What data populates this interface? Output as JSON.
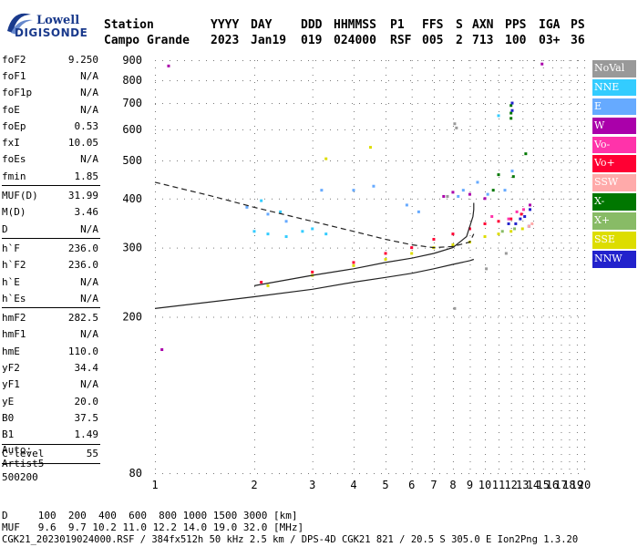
{
  "logo": {
    "line1": "Lowell",
    "line2": "DIGISONDE"
  },
  "header": {
    "row1": [
      "Station",
      "YYYY",
      "DAY",
      "DDD",
      "HHMMSS",
      "P1",
      "FFS",
      "S",
      "AXN",
      "PPS",
      "IGA",
      "PS"
    ],
    "row2": [
      "Campo Grande",
      "2023",
      "Jan19",
      "019",
      "024000",
      "RSF",
      "005",
      "2",
      "713",
      "100",
      "03+",
      "36"
    ]
  },
  "params": {
    "group1": [
      {
        "label": "foF2",
        "value": "9.250"
      },
      {
        "label": "foF1",
        "value": "N/A"
      },
      {
        "label": "foF1p",
        "value": "N/A"
      },
      {
        "label": "foE",
        "value": "N/A"
      },
      {
        "label": "foEp",
        "value": "0.53"
      },
      {
        "label": "fxI",
        "value": "10.05"
      },
      {
        "label": "foEs",
        "value": "N/A"
      },
      {
        "label": "fmin",
        "value": "1.85"
      }
    ],
    "group2": [
      {
        "label": "MUF(D)",
        "value": "31.99"
      },
      {
        "label": "M(D)",
        "value": "3.46"
      },
      {
        "label": "D",
        "value": "N/A"
      }
    ],
    "group3": [
      {
        "label": "h`F",
        "value": "236.0"
      },
      {
        "label": "h`F2",
        "value": "236.0"
      },
      {
        "label": "h`E",
        "value": "N/A"
      },
      {
        "label": "h`Es",
        "value": "N/A"
      }
    ],
    "group4": [
      {
        "label": "hmF2",
        "value": "282.5"
      },
      {
        "label": "hmF1",
        "value": "N/A"
      },
      {
        "label": "hmE",
        "value": "110.0"
      },
      {
        "label": "yF2",
        "value": "34.4"
      },
      {
        "label": "yF1",
        "value": "N/A"
      },
      {
        "label": "yE",
        "value": "20.0"
      },
      {
        "label": "B0",
        "value": "37.5"
      },
      {
        "label": "B1",
        "value": "1.49"
      }
    ],
    "group5": [
      {
        "label": "C-level",
        "value": "55"
      }
    ]
  },
  "auto": {
    "line1": "Auto:",
    "line2": "Artist5",
    "line3": "500200"
  },
  "legend": [
    {
      "label": "NoVal",
      "color": "#999999"
    },
    {
      "label": "NNE",
      "color": "#33ccff"
    },
    {
      "label": "E",
      "color": "#66aaff"
    },
    {
      "label": "W",
      "color": "#aa00aa"
    },
    {
      "label": "Vo-",
      "color": "#ff33aa"
    },
    {
      "label": "Vo+",
      "color": "#ff0033"
    },
    {
      "label": "SSW",
      "color": "#ffaaaa"
    },
    {
      "label": "X-",
      "color": "#007700"
    },
    {
      "label": "X+",
      "color": "#88bb66"
    },
    {
      "label": "SSE",
      "color": "#dddd00"
    },
    {
      "label": "NNW",
      "color": "#2222cc"
    }
  ],
  "footer": {
    "d_row": "D     100  200  400  600  800 1000 1500 3000 [km]",
    "muf_row": "MUF   9.6  9.7 10.2 11.0 12.2 14.0 19.0 32.0 [MHz]",
    "file_row": "CGK21_2023019024000.RSF / 384fx512h 50 kHz 2.5 km / DPS-4D CGK21 821 / 20.5 S 305.0 E Ion2Png 1.3.20"
  },
  "chart_data": {
    "type": "scatter",
    "x_ticks": [
      1,
      2,
      3,
      4,
      5,
      6,
      7,
      8,
      9,
      10,
      11,
      12,
      13,
      14,
      15,
      16,
      17,
      18,
      19,
      20
    ],
    "y_ticks": [
      80,
      200,
      300,
      400,
      500,
      600,
      700,
      800,
      900
    ],
    "xlim": [
      1,
      20
    ],
    "ylim": [
      80,
      900
    ],
    "x_scale": "log",
    "y_scale": "log",
    "grid": true,
    "series": [
      {
        "name": "X-",
        "color": "#007700",
        "points": [
          [
            12.0,
            690
          ],
          [
            12.0,
            660
          ],
          [
            12.0,
            640
          ],
          [
            12.2,
            455
          ],
          [
            13.3,
            520
          ],
          [
            11.0,
            460
          ],
          [
            10.6,
            420
          ]
        ]
      },
      {
        "name": "NNW",
        "color": "#2222cc",
        "points": [
          [
            12.1,
            700
          ],
          [
            12.1,
            670
          ],
          [
            13.7,
            375
          ],
          [
            12.4,
            345
          ],
          [
            12.8,
            355
          ],
          [
            13.2,
            360
          ],
          [
            11.8,
            345
          ],
          [
            13.6,
            340
          ]
        ]
      },
      {
        "name": "W",
        "color": "#aa00aa",
        "points": [
          [
            1.1,
            870
          ],
          [
            14.9,
            880
          ],
          [
            1.05,
            165
          ],
          [
            8.0,
            415
          ],
          [
            9.0,
            410
          ],
          [
            10.0,
            400
          ],
          [
            7.5,
            405
          ],
          [
            13.7,
            385
          ]
        ]
      },
      {
        "name": "E",
        "color": "#66aaff",
        "points": [
          [
            1.9,
            380
          ],
          [
            2.2,
            365
          ],
          [
            2.5,
            350
          ],
          [
            3.2,
            420
          ],
          [
            4.0,
            420
          ],
          [
            4.6,
            430
          ],
          [
            5.8,
            385
          ],
          [
            6.3,
            370
          ],
          [
            8.3,
            405
          ],
          [
            8.6,
            420
          ],
          [
            9.5,
            440
          ],
          [
            10.2,
            410
          ],
          [
            11.5,
            420
          ],
          [
            12.1,
            470
          ]
        ]
      },
      {
        "name": "NNE",
        "color": "#33ccff",
        "points": [
          [
            2.0,
            330
          ],
          [
            2.2,
            325
          ],
          [
            2.5,
            320
          ],
          [
            2.8,
            330
          ],
          [
            3.0,
            335
          ],
          [
            3.3,
            325
          ],
          [
            2.1,
            395
          ],
          [
            2.4,
            370
          ],
          [
            11.0,
            650
          ]
        ]
      },
      {
        "name": "SSE",
        "color": "#dddd00",
        "points": [
          [
            2.2,
            240
          ],
          [
            3.0,
            255
          ],
          [
            4.0,
            270
          ],
          [
            5.0,
            280
          ],
          [
            6.0,
            290
          ],
          [
            7.0,
            300
          ],
          [
            8.0,
            305
          ],
          [
            9.0,
            310
          ],
          [
            10.0,
            320
          ],
          [
            11.0,
            325
          ],
          [
            12.0,
            330
          ],
          [
            13.0,
            335
          ],
          [
            3.3,
            505
          ],
          [
            4.5,
            540
          ]
        ]
      },
      {
        "name": "Vo+",
        "color": "#ff0033",
        "points": [
          [
            2.1,
            245
          ],
          [
            3.0,
            260
          ],
          [
            4.0,
            275
          ],
          [
            5.0,
            290
          ],
          [
            6.0,
            300
          ],
          [
            7.0,
            315
          ],
          [
            8.0,
            325
          ],
          [
            9.0,
            335
          ],
          [
            10.0,
            345
          ],
          [
            11.0,
            350
          ],
          [
            12.0,
            355
          ],
          [
            12.9,
            365
          ]
        ]
      },
      {
        "name": "Vo-",
        "color": "#ff33aa",
        "points": [
          [
            11.8,
            355
          ],
          [
            12.5,
            370
          ],
          [
            13.1,
            375
          ],
          [
            10.5,
            360
          ]
        ]
      },
      {
        "name": "SSW",
        "color": "#ffaaaa",
        "points": [
          [
            13.6,
            340
          ],
          [
            13.9,
            345
          ]
        ]
      },
      {
        "name": "X+",
        "color": "#88bb66",
        "points": [
          [
            11.3,
            330
          ],
          [
            12.3,
            335
          ]
        ]
      },
      {
        "name": "NoVal",
        "color": "#999999",
        "points": [
          [
            8.1,
            210
          ],
          [
            8.2,
            605
          ],
          [
            8.1,
            620
          ],
          [
            7.7,
            405
          ],
          [
            10.1,
            265
          ],
          [
            11.6,
            290
          ]
        ]
      }
    ],
    "profile_dashed": [
      [
        1.0,
        440
      ],
      [
        1.5,
        405
      ],
      [
        2.0,
        380
      ],
      [
        3.0,
        350
      ],
      [
        4.0,
        330
      ],
      [
        5.0,
        315
      ],
      [
        6.0,
        305
      ],
      [
        7.0,
        300
      ],
      [
        8.0,
        302
      ],
      [
        9.0,
        310
      ],
      [
        9.25,
        325
      ]
    ],
    "trace_solid_lower": [
      [
        1.0,
        210
      ],
      [
        2.0,
        225
      ],
      [
        3.0,
        235
      ],
      [
        4.0,
        245
      ],
      [
        5.0,
        252
      ],
      [
        6.0,
        258
      ],
      [
        7.0,
        265
      ],
      [
        8.0,
        272
      ],
      [
        9.0,
        278
      ],
      [
        9.25,
        280
      ]
    ],
    "trace_solid_upper": [
      [
        2.0,
        240
      ],
      [
        3.0,
        255
      ],
      [
        4.0,
        265
      ],
      [
        5.0,
        275
      ],
      [
        6.0,
        282
      ],
      [
        7.0,
        290
      ],
      [
        8.0,
        300
      ],
      [
        8.8,
        320
      ],
      [
        9.2,
        360
      ],
      [
        9.25,
        375
      ],
      [
        9.25,
        390
      ]
    ]
  }
}
